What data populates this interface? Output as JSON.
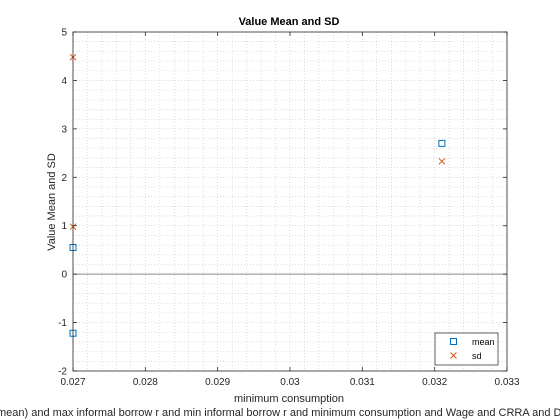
{
  "chart_data": {
    "type": "scatter",
    "title": "Value Mean and SD",
    "xlabel": "minimum consumption",
    "ylabel": "Value Mean and SD",
    "xlim": [
      0.027,
      0.033
    ],
    "ylim": [
      -2,
      5
    ],
    "xticks": [
      "0.027",
      "0.028",
      "0.029",
      "0.03",
      "0.031",
      "0.032",
      "0.033"
    ],
    "xtick_values": [
      0.027,
      0.028,
      0.029,
      0.03,
      0.031,
      0.032,
      0.033
    ],
    "yticks": [
      "-2",
      "-1",
      "0",
      "1",
      "2",
      "3",
      "4",
      "5"
    ],
    "ytick_values": [
      -2,
      -1,
      0,
      1,
      2,
      3,
      4,
      5
    ],
    "grid": "minor dotted",
    "zero_line": true,
    "caption": "mean) and max informal borrow r and min informal borrow r and minimum consumption and Wage and CRRA and D",
    "series": [
      {
        "name": "mean",
        "marker": "square",
        "color": "#0072BD",
        "points": [
          [
            0.027,
            0.55
          ],
          [
            0.027,
            -1.22
          ],
          [
            0.0321,
            2.7
          ]
        ]
      },
      {
        "name": "sd",
        "marker": "x",
        "color": "#D95319",
        "points": [
          [
            0.027,
            4.48
          ],
          [
            0.027,
            0.98
          ],
          [
            0.0321,
            2.33
          ]
        ]
      }
    ],
    "legend": {
      "position": "bottom-right"
    }
  }
}
